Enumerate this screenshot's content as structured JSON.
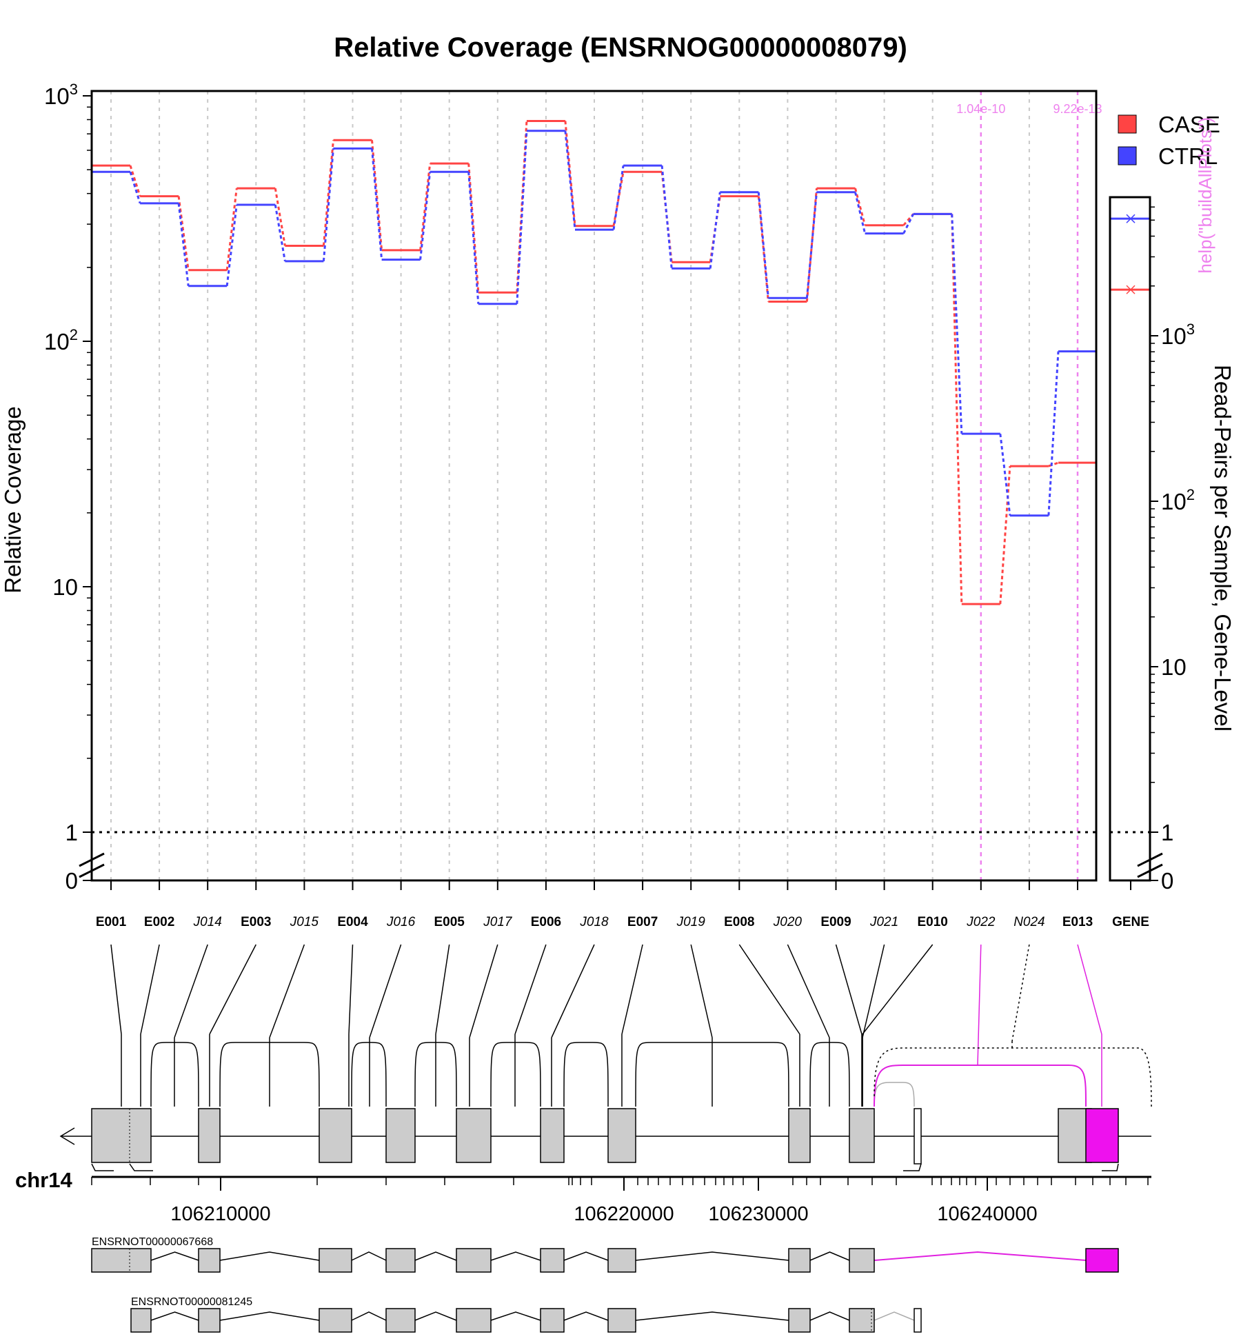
{
  "chart_data": {
    "type": "line",
    "title": "Relative Coverage (ENSRNOG00000008079)",
    "ylabel": "Relative Coverage",
    "ylabel_right": "Read-Pairs per Sample, Gene-Level",
    "yscale": "log",
    "ylim": [
      0,
      1000
    ],
    "yticks": [
      {
        "label": "0"
      },
      {
        "label": "1"
      },
      {
        "label": "10"
      },
      {
        "label": "10",
        "sup": "2"
      },
      {
        "label": "10",
        "sup": "3"
      }
    ],
    "yticks_right": [
      {
        "label": "0"
      },
      {
        "label": "1"
      },
      {
        "label": "10"
      },
      {
        "label": "10",
        "sup": "2"
      },
      {
        "label": "10",
        "sup": "3"
      }
    ],
    "legend": {
      "position": "top-right"
    },
    "categories": [
      {
        "label": "E001",
        "kind": "exon"
      },
      {
        "label": "E002",
        "kind": "exon"
      },
      {
        "label": "J014",
        "kind": "junction"
      },
      {
        "label": "E003",
        "kind": "exon"
      },
      {
        "label": "J015",
        "kind": "junction"
      },
      {
        "label": "E004",
        "kind": "exon"
      },
      {
        "label": "J016",
        "kind": "junction"
      },
      {
        "label": "E005",
        "kind": "exon"
      },
      {
        "label": "J017",
        "kind": "junction"
      },
      {
        "label": "E006",
        "kind": "exon"
      },
      {
        "label": "J018",
        "kind": "junction"
      },
      {
        "label": "E007",
        "kind": "exon"
      },
      {
        "label": "J019",
        "kind": "junction"
      },
      {
        "label": "E008",
        "kind": "exon"
      },
      {
        "label": "J020",
        "kind": "junction"
      },
      {
        "label": "E009",
        "kind": "exon"
      },
      {
        "label": "J021",
        "kind": "junction"
      },
      {
        "label": "E010",
        "kind": "exon"
      },
      {
        "label": "J022",
        "kind": "junction"
      },
      {
        "label": "N024",
        "kind": "junction"
      },
      {
        "label": "E013",
        "kind": "exon"
      }
    ],
    "series": [
      {
        "name": "CASE",
        "color": "#ff4444",
        "values": [
          520,
          390,
          195,
          420,
          245,
          660,
          235,
          530,
          158,
          790,
          295,
          490,
          210,
          390,
          145,
          420,
          297,
          330,
          8.5,
          31,
          32
        ]
      },
      {
        "name": "CTRL",
        "color": "#4444ff",
        "values": [
          490,
          365,
          168,
          360,
          212,
          610,
          215,
          490,
          142,
          720,
          285,
          520,
          198,
          405,
          150,
          405,
          275,
          330,
          42,
          19.5,
          91
        ]
      }
    ],
    "gene_level": {
      "label": "GENE",
      "values": [
        {
          "name": "CASE",
          "value": 1900
        },
        {
          "name": "CTRL",
          "value": 5100
        }
      ],
      "ylim": [
        0,
        8000
      ]
    },
    "significant": [
      {
        "feature": "J022",
        "pvalue": "1.04e-10"
      },
      {
        "feature": "E013",
        "pvalue": "9.22e-13"
      }
    ],
    "help_text": "help(\"buildAllPlots\")",
    "genome": {
      "chromosome": "chr14",
      "ticks": [
        "106210000",
        "106220000",
        "106230000",
        "106240000"
      ],
      "transcripts": [
        "ENSRNOT00000067668",
        "ENSRNOT00000081245"
      ]
    }
  }
}
